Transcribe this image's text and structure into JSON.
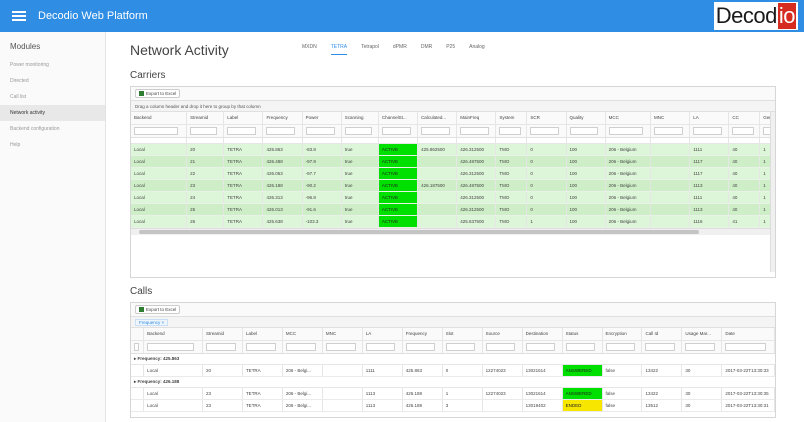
{
  "app": {
    "title": "Decodio Web Platform",
    "logo_main": "Decod",
    "logo_accent": "io"
  },
  "colors": {
    "topbar": "#2f8de4",
    "active_status": "#00e000",
    "ended_status": "#f7e600",
    "row_green": "#ddf5d8"
  },
  "sidebar": {
    "heading": "Modules",
    "items": [
      {
        "label": "Power monitoring"
      },
      {
        "label": "Directed"
      },
      {
        "label": "Call list"
      },
      {
        "label": "Network activity"
      },
      {
        "label": "Backend configuration"
      },
      {
        "label": "Help"
      }
    ]
  },
  "page": {
    "title": "Network Activity",
    "tabs": [
      {
        "label": "MXDN"
      },
      {
        "label": "TETRA"
      },
      {
        "label": "Tetrapol"
      },
      {
        "label": "dPMR"
      },
      {
        "label": "DMR"
      },
      {
        "label": "P25"
      },
      {
        "label": "Analog"
      }
    ]
  },
  "carriers": {
    "title": "Carriers",
    "export_label": "Export to Excel",
    "group_hint": "Drag a column header and drop it here to group by that column",
    "columns": [
      "Backend",
      "Streamid",
      "Label",
      "Frequency",
      "Power",
      "Scanning",
      "ChannelSt...",
      "Calculated...",
      "MainFreq",
      "System",
      "SCR",
      "Quality",
      "MCC",
      "MNC",
      "LA",
      "CC",
      "GenOn"
    ],
    "rows": [
      [
        "Local",
        "20",
        "TETRA",
        "425.863",
        "-83.8",
        "true",
        "ACTIVE",
        "425.862500",
        "426.312500",
        "TMO",
        "0",
        "100",
        "206 - Belgium",
        "",
        "1111",
        "40",
        "1"
      ],
      [
        "Local",
        "21",
        "TETRA",
        "426.488",
        "-97.9",
        "true",
        "ACTIVE",
        "",
        "426.487500",
        "TMO",
        "0",
        "100",
        "206 - Belgium",
        "",
        "1117",
        "40",
        "1"
      ],
      [
        "Local",
        "22",
        "TETRA",
        "426.063",
        "-97.7",
        "true",
        "ACTIVE",
        "",
        "426.312500",
        "TMO",
        "0",
        "100",
        "206 - Belgium",
        "",
        "1117",
        "40",
        "1"
      ],
      [
        "Local",
        "23",
        "TETRA",
        "426.188",
        "-90.2",
        "true",
        "ACTIVE",
        "426.187500",
        "426.487500",
        "TMO",
        "0",
        "100",
        "206 - Belgium",
        "",
        "1113",
        "40",
        "1"
      ],
      [
        "Local",
        "24",
        "TETRA",
        "426.313",
        "-96.8",
        "true",
        "ACTIVE",
        "",
        "426.312500",
        "TMO",
        "0",
        "100",
        "206 - Belgium",
        "",
        "1111",
        "40",
        "1"
      ],
      [
        "Local",
        "25",
        "TETRA",
        "426.013",
        "-91.6",
        "true",
        "ACTIVE",
        "",
        "426.312500",
        "TMO",
        "0",
        "100",
        "206 - Belgium",
        "",
        "1113",
        "40",
        "1"
      ],
      [
        "Local",
        "26",
        "TETRA",
        "425.638",
        "-103.3",
        "true",
        "ACTIVE",
        "",
        "425.637500",
        "TMO",
        "1",
        "100",
        "206 - Belgium",
        "",
        "1116",
        "41",
        "1"
      ]
    ]
  },
  "calls": {
    "title": "Calls",
    "export_label": "Export to Excel",
    "group_chip": "Frequency",
    "columns": [
      "Backend",
      "Streamid",
      "Label",
      "MCC",
      "MNC",
      "LA",
      "Frequency",
      "Slot",
      "Source",
      "Destination",
      "Status",
      "Encryption",
      "Call Id",
      "Usage Mar...",
      "Date"
    ],
    "groups": [
      {
        "label": "Frequency: 425.863",
        "rows": [
          [
            "Local",
            "20",
            "TETRA",
            "206 - Belgi...",
            "",
            "1111",
            "425.863",
            "0",
            "12274023",
            "13021614",
            "ANSWERED",
            "false",
            "13422",
            "30",
            "2017-03-22T13:30:33"
          ]
        ]
      },
      {
        "label": "Frequency: 426.188",
        "rows": [
          [
            "Local",
            "23",
            "TETRA",
            "206 - Belgi...",
            "",
            "1113",
            "426.188",
            "1",
            "12274023",
            "13021614",
            "ANSWERED",
            "false",
            "13422",
            "30",
            "2017-03-22T13:30:35"
          ],
          [
            "Local",
            "23",
            "TETRA",
            "206 - Belgi...",
            "",
            "1113",
            "426.188",
            "3",
            "",
            "13019402",
            "ENDED",
            "false",
            "13512",
            "30",
            "2017-03-22T13:30:31"
          ]
        ]
      }
    ]
  }
}
